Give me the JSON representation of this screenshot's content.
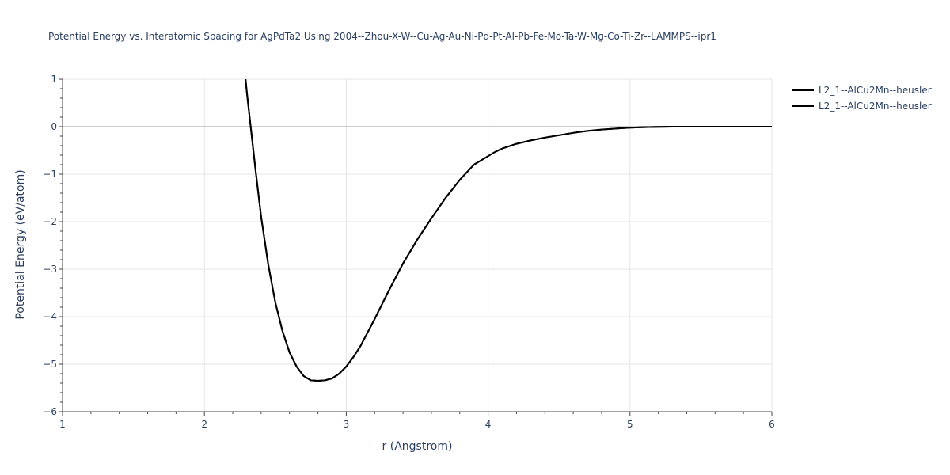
{
  "chart_data": {
    "type": "line",
    "title": "Potential Energy vs. Interatomic Spacing for AgPdTa2 Using 2004--Zhou-X-W--Cu-Ag-Au-Ni-Pd-Pt-Al-Pb-Fe-Mo-Ta-W-Mg-Co-Ti-Zr--LAMMPS--ipr1",
    "xlabel": "r (Angstrom)",
    "ylabel": "Potential Energy (eV/atom)",
    "xlim": [
      1,
      6
    ],
    "ylim": [
      -6,
      1
    ],
    "x_ticks": [
      1,
      2,
      3,
      4,
      5,
      6
    ],
    "x_tick_labels": [
      "1",
      "2",
      "3",
      "4",
      "5",
      "6"
    ],
    "y_ticks": [
      1,
      0,
      -1,
      -2,
      -3,
      -4,
      -5,
      -6
    ],
    "y_tick_labels": [
      "1",
      "0",
      "−1",
      "−2",
      "−3",
      "−4",
      "−5",
      "−6"
    ],
    "grid": true,
    "legend_position": "top-right",
    "series": [
      {
        "name": "L2_1--AlCu2Mn--heusler",
        "color": "#000000",
        "x": [
          2.29,
          2.3,
          2.33,
          2.36,
          2.4,
          2.45,
          2.5,
          2.55,
          2.6,
          2.65,
          2.7,
          2.75,
          2.8,
          2.85,
          2.9,
          2.95,
          3.0,
          3.05,
          3.1,
          3.2,
          3.3,
          3.4,
          3.5,
          3.6,
          3.7,
          3.8,
          3.9,
          4.0,
          4.05,
          4.1,
          4.2,
          4.3,
          4.4,
          4.5,
          4.6,
          4.7,
          4.8,
          4.9,
          5.0,
          5.1,
          5.2,
          5.3,
          5.5,
          5.8,
          6.0
        ],
        "y": [
          1.0,
          0.7,
          -0.1,
          -0.9,
          -1.9,
          -2.9,
          -3.7,
          -4.3,
          -4.75,
          -5.05,
          -5.25,
          -5.34,
          -5.35,
          -5.34,
          -5.3,
          -5.2,
          -5.05,
          -4.85,
          -4.62,
          -4.05,
          -3.45,
          -2.88,
          -2.38,
          -1.93,
          -1.5,
          -1.12,
          -0.8,
          -0.62,
          -0.53,
          -0.46,
          -0.36,
          -0.29,
          -0.23,
          -0.18,
          -0.13,
          -0.09,
          -0.06,
          -0.04,
          -0.02,
          -0.01,
          -0.005,
          0.0,
          0.0,
          0.0,
          0.0
        ]
      },
      {
        "name": "L2_1--AlCu2Mn--heusler",
        "color": "#000000",
        "x": [
          2.29,
          2.3,
          2.33,
          2.36,
          2.4,
          2.45,
          2.5,
          2.55,
          2.6,
          2.65,
          2.7,
          2.75,
          2.8,
          2.85,
          2.9,
          2.95,
          3.0,
          3.05,
          3.1,
          3.2,
          3.3,
          3.4,
          3.5,
          3.6,
          3.7,
          3.8,
          3.9,
          4.0,
          4.05,
          4.1,
          4.2,
          4.3,
          4.4,
          4.5,
          4.6,
          4.7,
          4.8,
          4.9,
          5.0,
          5.1,
          5.2,
          5.3,
          5.5,
          5.8,
          6.0
        ],
        "y": [
          1.0,
          0.7,
          -0.1,
          -0.9,
          -1.9,
          -2.9,
          -3.7,
          -4.3,
          -4.75,
          -5.05,
          -5.25,
          -5.34,
          -5.35,
          -5.34,
          -5.3,
          -5.2,
          -5.05,
          -4.85,
          -4.62,
          -4.05,
          -3.45,
          -2.88,
          -2.38,
          -1.93,
          -1.5,
          -1.12,
          -0.8,
          -0.62,
          -0.53,
          -0.46,
          -0.36,
          -0.29,
          -0.23,
          -0.18,
          -0.13,
          -0.09,
          -0.06,
          -0.04,
          -0.02,
          -0.01,
          -0.005,
          0.0,
          0.0,
          0.0,
          0.0
        ]
      }
    ]
  }
}
